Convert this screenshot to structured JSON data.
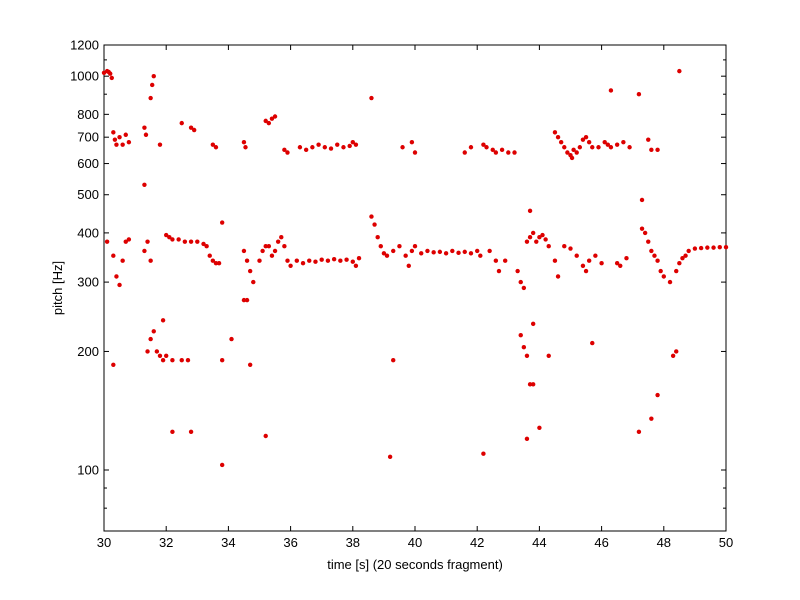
{
  "chart_data": {
    "type": "scatter",
    "title": "",
    "xlabel": "time [s] (20 seconds fragment)",
    "ylabel": "pitch [Hz]",
    "xlim": [
      30,
      50
    ],
    "ylim": [
      70,
      1200
    ],
    "yscale": "log",
    "grid": false,
    "marker_color": "#dd0000",
    "x_ticks": [
      30,
      32,
      34,
      36,
      38,
      40,
      42,
      44,
      46,
      48,
      50
    ],
    "y_ticks": [
      100,
      200,
      300,
      400,
      500,
      600,
      700,
      800,
      1000,
      1200
    ],
    "series": [
      {
        "points": [
          [
            30.0,
            1020
          ],
          [
            30.1,
            1030
          ],
          [
            30.15,
            1025
          ],
          [
            30.2,
            1015
          ],
          [
            30.25,
            990
          ],
          [
            30.3,
            720
          ],
          [
            30.35,
            690
          ],
          [
            30.4,
            670
          ],
          [
            30.5,
            700
          ],
          [
            30.6,
            670
          ],
          [
            30.7,
            710
          ],
          [
            30.8,
            680
          ],
          [
            31.3,
            740
          ],
          [
            31.35,
            710
          ],
          [
            31.5,
            880
          ],
          [
            31.55,
            950
          ],
          [
            31.6,
            1000
          ],
          [
            31.8,
            670
          ],
          [
            32.5,
            760
          ],
          [
            32.8,
            740
          ],
          [
            32.9,
            730
          ],
          [
            33.5,
            670
          ],
          [
            33.6,
            660
          ],
          [
            34.5,
            680
          ],
          [
            34.55,
            660
          ],
          [
            35.2,
            770
          ],
          [
            35.3,
            760
          ],
          [
            35.4,
            780
          ],
          [
            35.5,
            790
          ],
          [
            35.8,
            650
          ],
          [
            35.9,
            640
          ],
          [
            36.3,
            660
          ],
          [
            36.5,
            650
          ],
          [
            36.7,
            660
          ],
          [
            36.9,
            670
          ],
          [
            37.1,
            660
          ],
          [
            37.3,
            655
          ],
          [
            37.5,
            670
          ],
          [
            37.7,
            660
          ],
          [
            37.9,
            665
          ],
          [
            38.0,
            680
          ],
          [
            38.1,
            670
          ],
          [
            38.6,
            880
          ],
          [
            39.6,
            660
          ],
          [
            39.9,
            680
          ],
          [
            40.0,
            640
          ],
          [
            41.6,
            640
          ],
          [
            41.8,
            660
          ],
          [
            42.2,
            670
          ],
          [
            42.3,
            660
          ],
          [
            42.5,
            650
          ],
          [
            42.6,
            640
          ],
          [
            42.8,
            650
          ],
          [
            43.0,
            640
          ],
          [
            43.2,
            640
          ],
          [
            44.5,
            720
          ],
          [
            44.6,
            700
          ],
          [
            44.7,
            680
          ],
          [
            44.8,
            660
          ],
          [
            44.9,
            640
          ],
          [
            45.0,
            630
          ],
          [
            45.05,
            620
          ],
          [
            45.1,
            650
          ],
          [
            45.2,
            640
          ],
          [
            45.3,
            660
          ],
          [
            45.4,
            690
          ],
          [
            45.5,
            700
          ],
          [
            45.6,
            680
          ],
          [
            45.7,
            660
          ],
          [
            45.9,
            660
          ],
          [
            46.1,
            680
          ],
          [
            46.2,
            670
          ],
          [
            46.3,
            660
          ],
          [
            46.5,
            670
          ],
          [
            46.7,
            680
          ],
          [
            46.9,
            660
          ],
          [
            46.3,
            920
          ],
          [
            47.2,
            900
          ],
          [
            47.5,
            690
          ],
          [
            47.6,
            650
          ],
          [
            47.8,
            650
          ],
          [
            48.5,
            1030
          ],
          [
            30.1,
            380
          ],
          [
            30.3,
            350
          ],
          [
            30.4,
            310
          ],
          [
            30.5,
            295
          ],
          [
            30.6,
            340
          ],
          [
            30.7,
            380
          ],
          [
            30.8,
            385
          ],
          [
            31.3,
            360
          ],
          [
            31.4,
            380
          ],
          [
            31.5,
            340
          ],
          [
            32.0,
            395
          ],
          [
            32.1,
            390
          ],
          [
            32.2,
            385
          ],
          [
            32.4,
            385
          ],
          [
            32.6,
            380
          ],
          [
            32.8,
            380
          ],
          [
            33.0,
            380
          ],
          [
            33.2,
            375
          ],
          [
            33.3,
            370
          ],
          [
            33.4,
            350
          ],
          [
            33.5,
            340
          ],
          [
            33.6,
            335
          ],
          [
            33.7,
            335
          ],
          [
            33.8,
            425
          ],
          [
            34.5,
            360
          ],
          [
            34.6,
            340
          ],
          [
            34.7,
            320
          ],
          [
            34.8,
            300
          ],
          [
            35.0,
            340
          ],
          [
            35.1,
            360
          ],
          [
            35.2,
            370
          ],
          [
            35.3,
            370
          ],
          [
            35.4,
            350
          ],
          [
            35.5,
            360
          ],
          [
            35.6,
            380
          ],
          [
            35.7,
            390
          ],
          [
            35.8,
            370
          ],
          [
            35.9,
            340
          ],
          [
            36.0,
            330
          ],
          [
            36.2,
            340
          ],
          [
            36.4,
            335
          ],
          [
            36.6,
            340
          ],
          [
            36.8,
            338
          ],
          [
            37.0,
            342
          ],
          [
            37.2,
            340
          ],
          [
            37.4,
            343
          ],
          [
            37.6,
            340
          ],
          [
            37.8,
            342
          ],
          [
            38.0,
            338
          ],
          [
            38.1,
            330
          ],
          [
            38.2,
            345
          ],
          [
            38.6,
            440
          ],
          [
            38.7,
            420
          ],
          [
            38.8,
            390
          ],
          [
            38.9,
            370
          ],
          [
            39.0,
            355
          ],
          [
            39.1,
            350
          ],
          [
            39.3,
            360
          ],
          [
            39.5,
            370
          ],
          [
            39.7,
            350
          ],
          [
            39.8,
            330
          ],
          [
            39.9,
            360
          ],
          [
            40.0,
            370
          ],
          [
            40.2,
            355
          ],
          [
            40.4,
            360
          ],
          [
            40.6,
            357
          ],
          [
            40.8,
            358
          ],
          [
            41.0,
            355
          ],
          [
            41.2,
            360
          ],
          [
            41.4,
            356
          ],
          [
            41.6,
            358
          ],
          [
            41.8,
            355
          ],
          [
            42.0,
            360
          ],
          [
            42.1,
            350
          ],
          [
            42.4,
            360
          ],
          [
            42.6,
            340
          ],
          [
            42.7,
            320
          ],
          [
            42.9,
            340
          ],
          [
            43.3,
            320
          ],
          [
            43.4,
            300
          ],
          [
            43.5,
            290
          ],
          [
            43.6,
            380
          ],
          [
            43.7,
            390
          ],
          [
            43.8,
            400
          ],
          [
            43.9,
            380
          ],
          [
            44.0,
            390
          ],
          [
            44.1,
            395
          ],
          [
            44.2,
            385
          ],
          [
            44.3,
            370
          ],
          [
            44.5,
            340
          ],
          [
            44.6,
            310
          ],
          [
            44.8,
            370
          ],
          [
            45.0,
            365
          ],
          [
            45.2,
            350
          ],
          [
            45.4,
            330
          ],
          [
            45.5,
            320
          ],
          [
            45.6,
            340
          ],
          [
            45.8,
            350
          ],
          [
            46.0,
            335
          ],
          [
            46.5,
            335
          ],
          [
            46.6,
            330
          ],
          [
            46.8,
            345
          ],
          [
            47.3,
            410
          ],
          [
            47.4,
            400
          ],
          [
            47.5,
            380
          ],
          [
            47.6,
            360
          ],
          [
            47.7,
            350
          ],
          [
            47.8,
            340
          ],
          [
            47.9,
            320
          ],
          [
            48.0,
            310
          ],
          [
            48.2,
            300
          ],
          [
            48.4,
            320
          ],
          [
            48.5,
            335
          ],
          [
            48.6,
            345
          ],
          [
            48.7,
            350
          ],
          [
            48.8,
            360
          ],
          [
            49.0,
            365
          ],
          [
            49.2,
            366
          ],
          [
            49.4,
            367
          ],
          [
            49.6,
            367
          ],
          [
            49.8,
            368
          ],
          [
            50.0,
            368
          ],
          [
            31.3,
            530
          ],
          [
            43.7,
            455
          ],
          [
            47.3,
            485
          ],
          [
            34.5,
            270
          ],
          [
            34.6,
            270
          ],
          [
            30.3,
            185
          ],
          [
            31.4,
            200
          ],
          [
            31.5,
            215
          ],
          [
            31.6,
            225
          ],
          [
            31.7,
            200
          ],
          [
            31.8,
            195
          ],
          [
            31.9,
            190
          ],
          [
            32.0,
            195
          ],
          [
            32.2,
            190
          ],
          [
            32.5,
            190
          ],
          [
            32.7,
            190
          ],
          [
            31.9,
            240
          ],
          [
            33.8,
            190
          ],
          [
            34.1,
            215
          ],
          [
            34.7,
            185
          ],
          [
            39.3,
            190
          ],
          [
            43.4,
            220
          ],
          [
            43.5,
            205
          ],
          [
            43.6,
            195
          ],
          [
            43.8,
            235
          ],
          [
            44.3,
            195
          ],
          [
            45.7,
            210
          ],
          [
            48.4,
            200
          ],
          [
            48.3,
            195
          ],
          [
            47.8,
            155
          ],
          [
            43.7,
            165
          ],
          [
            43.8,
            165
          ],
          [
            32.2,
            125
          ],
          [
            32.8,
            125
          ],
          [
            35.2,
            122
          ],
          [
            33.8,
            103
          ],
          [
            39.2,
            108
          ],
          [
            42.2,
            110
          ],
          [
            43.6,
            120
          ],
          [
            44.0,
            128
          ],
          [
            47.2,
            125
          ],
          [
            47.6,
            135
          ]
        ]
      }
    ]
  }
}
